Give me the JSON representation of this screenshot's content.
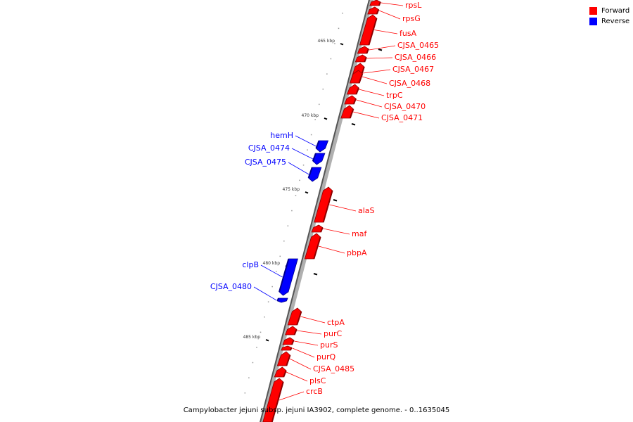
{
  "legend": {
    "forward_label": "Forward",
    "reverse_label": "Reverse",
    "forward_color": "#ff0000",
    "reverse_color": "#0000ff"
  },
  "caption": "Campylobacter jejuni subsp. jejuni IA3902, complete genome. - 0..1635045",
  "axis": {
    "unit": "kbp",
    "labels": [
      "465 kbp",
      "470 kbp",
      "475 kbp",
      "480 kbp",
      "485 kbp"
    ]
  },
  "genes": [
    {
      "name": "rpsL",
      "strand": "forward"
    },
    {
      "name": "rpsG",
      "strand": "forward"
    },
    {
      "name": "fusA",
      "strand": "forward"
    },
    {
      "name": "CJSA_0465",
      "strand": "forward"
    },
    {
      "name": "CJSA_0466",
      "strand": "forward"
    },
    {
      "name": "CJSA_0467",
      "strand": "forward"
    },
    {
      "name": "CJSA_0468",
      "strand": "forward"
    },
    {
      "name": "trpC",
      "strand": "forward"
    },
    {
      "name": "CJSA_0470",
      "strand": "forward"
    },
    {
      "name": "CJSA_0471",
      "strand": "forward"
    },
    {
      "name": "hemH",
      "strand": "reverse"
    },
    {
      "name": "CJSA_0474",
      "strand": "reverse"
    },
    {
      "name": "CJSA_0475",
      "strand": "reverse"
    },
    {
      "name": "alaS",
      "strand": "forward"
    },
    {
      "name": "maf",
      "strand": "forward"
    },
    {
      "name": "pbpA",
      "strand": "forward"
    },
    {
      "name": "clpB",
      "strand": "reverse"
    },
    {
      "name": "CJSA_0480",
      "strand": "reverse"
    },
    {
      "name": "ctpA",
      "strand": "forward"
    },
    {
      "name": "purC",
      "strand": "forward"
    },
    {
      "name": "purS",
      "strand": "forward"
    },
    {
      "name": "purQ",
      "strand": "forward"
    },
    {
      "name": "CJSA_0485",
      "strand": "forward"
    },
    {
      "name": "plsC",
      "strand": "forward"
    },
    {
      "name": "crcB",
      "strand": "forward"
    }
  ]
}
